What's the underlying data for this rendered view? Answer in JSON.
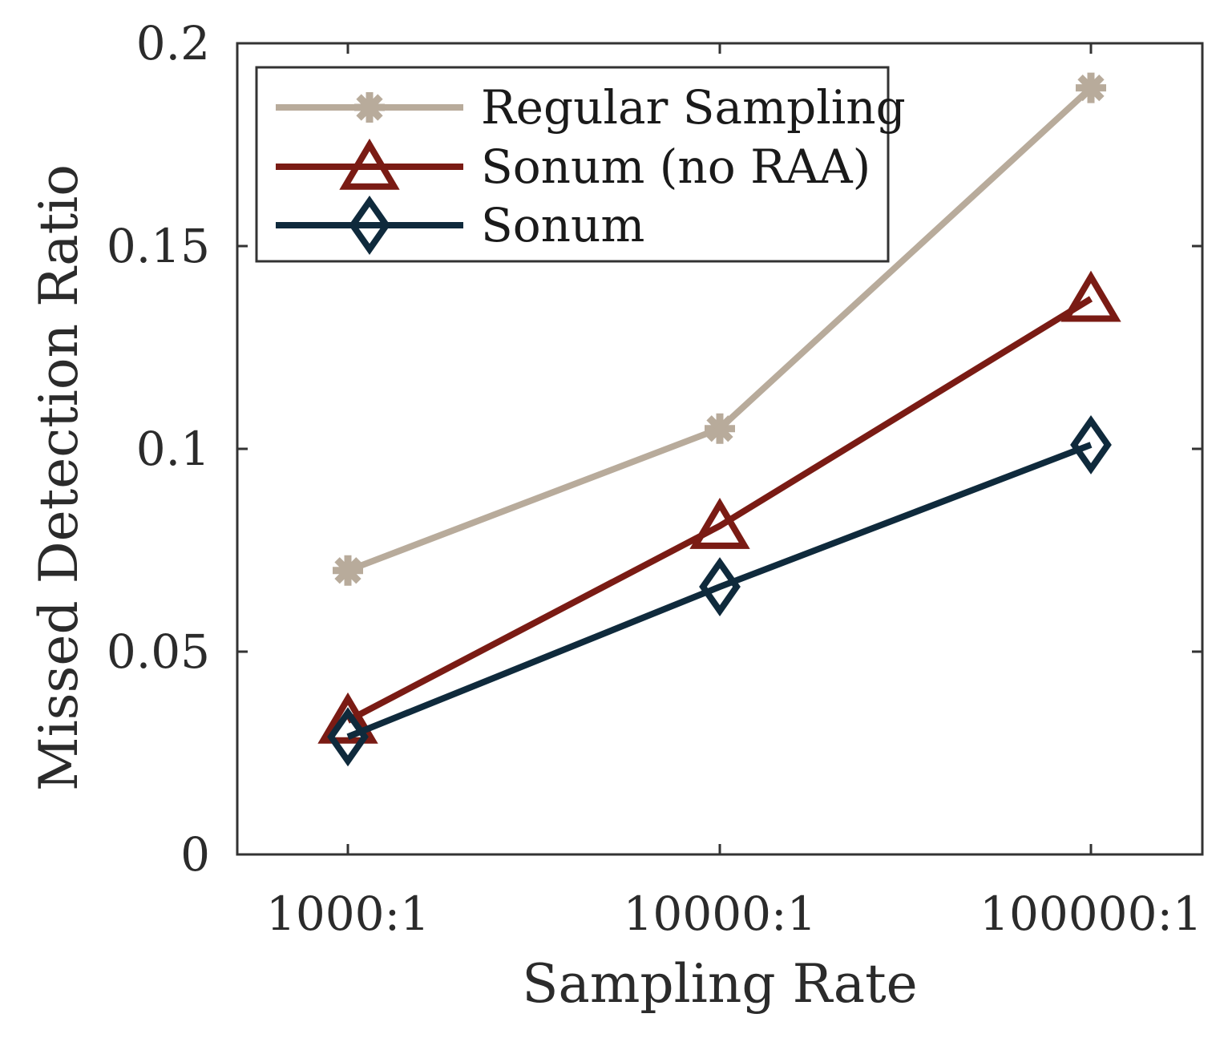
{
  "chart_data": {
    "type": "line",
    "title": "",
    "xlabel": "Sampling Rate",
    "ylabel": "Missed Detection Ratio",
    "categories": [
      "1000:1",
      "10000:1",
      "100000:1"
    ],
    "ylim": [
      0,
      0.2
    ],
    "yticks": [
      0,
      0.05,
      0.1,
      0.15,
      0.2
    ],
    "ytick_labels": [
      "0",
      "0.05",
      "0.1",
      "0.15",
      "0.2"
    ],
    "grid": false,
    "legend_position": "top-left",
    "series": [
      {
        "name": "Regular Sampling",
        "marker": "asterisk",
        "color": "#b8ab9b",
        "values": [
          0.07,
          0.105,
          0.189
        ]
      },
      {
        "name": "Sonum (no RAA)",
        "marker": "triangle",
        "color": "#7a1b14",
        "values": [
          0.033,
          0.081,
          0.137
        ]
      },
      {
        "name": "Sonum",
        "marker": "diamond",
        "color": "#0f2a3c",
        "values": [
          0.029,
          0.066,
          0.101
        ]
      }
    ]
  }
}
